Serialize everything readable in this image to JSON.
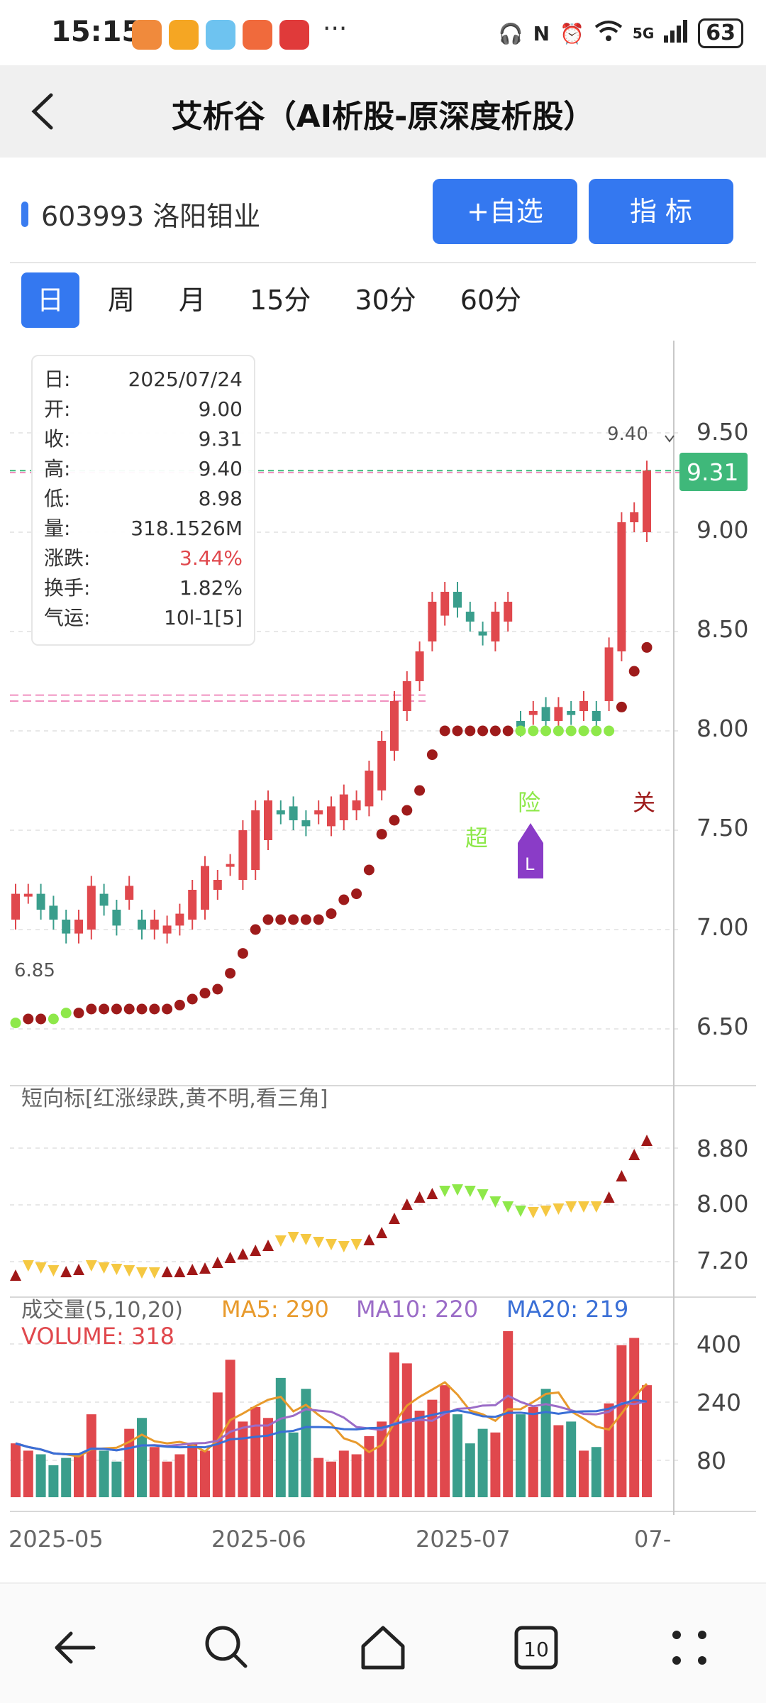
{
  "status_bar": {
    "time": "15:15",
    "dots": "···",
    "network": "5G",
    "battery": "63"
  },
  "header": {
    "back_icon": "chevron-left-icon",
    "title": "艾析谷（AI析股-原深度析股）"
  },
  "stock": {
    "name": "603993 洛阳钼业",
    "add_watch_label": "+自选",
    "indicator_label": "指  标"
  },
  "tabs": [
    "日",
    "周",
    "月",
    "15分",
    "30分",
    "60分"
  ],
  "active_tab": 0,
  "info": {
    "rows": [
      {
        "label": "日:",
        "value": "2025/07/24"
      },
      {
        "label": "开:",
        "value": "9.00"
      },
      {
        "label": "收:",
        "value": "9.31"
      },
      {
        "label": "高:",
        "value": "9.40"
      },
      {
        "label": "低:",
        "value": "8.98"
      },
      {
        "label": "量:",
        "value": "318.1526M"
      },
      {
        "label": "涨跌:",
        "value": "3.44%"
      },
      {
        "label": "换手:",
        "value": "1.82%"
      },
      {
        "label": "气运:",
        "value": "10l-1[5]"
      }
    ]
  },
  "main_chart": {
    "price_axis": [
      "9.50",
      "9.00",
      "8.50",
      "8.00",
      "7.50",
      "7.00",
      "6.50"
    ],
    "current_price": "9.31",
    "high_label": "9.40",
    "low_label": "6.85",
    "signals": {
      "chao": "超",
      "xian": "险",
      "guan": "关",
      "l_marker": "L"
    }
  },
  "sub_chart": {
    "title": "短向标[红涨绿跌,黄不明,看三角]",
    "axis": [
      "8.80",
      "8.00",
      "7.20"
    ]
  },
  "volume_chart": {
    "title": "成交量(5,10,20)",
    "ma5": "MA5: 290",
    "ma10": "MA10: 220",
    "ma20": "MA20: 219",
    "volume": "VOLUME: 318",
    "axis": [
      "400",
      "240",
      "80"
    ],
    "dates": [
      "2025-05",
      "2025-06",
      "2025-07",
      "07-"
    ]
  },
  "colors": {
    "up": "#e0484d",
    "down": "#3a9e8c",
    "accent": "#3478f0",
    "signal_dot": "#9e1b1b",
    "green_dot": "#8ee84a",
    "yellow": "#f5c842",
    "ma5": "#e89a2c",
    "ma10": "#9b6cc7",
    "ma20": "#3a6fd6"
  },
  "navbar": {
    "back_icon": "arrow-left-icon",
    "search_icon": "search-icon",
    "home_icon": "home-icon",
    "tabs_count": "10",
    "menu_icon": "dots-grid-icon"
  }
}
